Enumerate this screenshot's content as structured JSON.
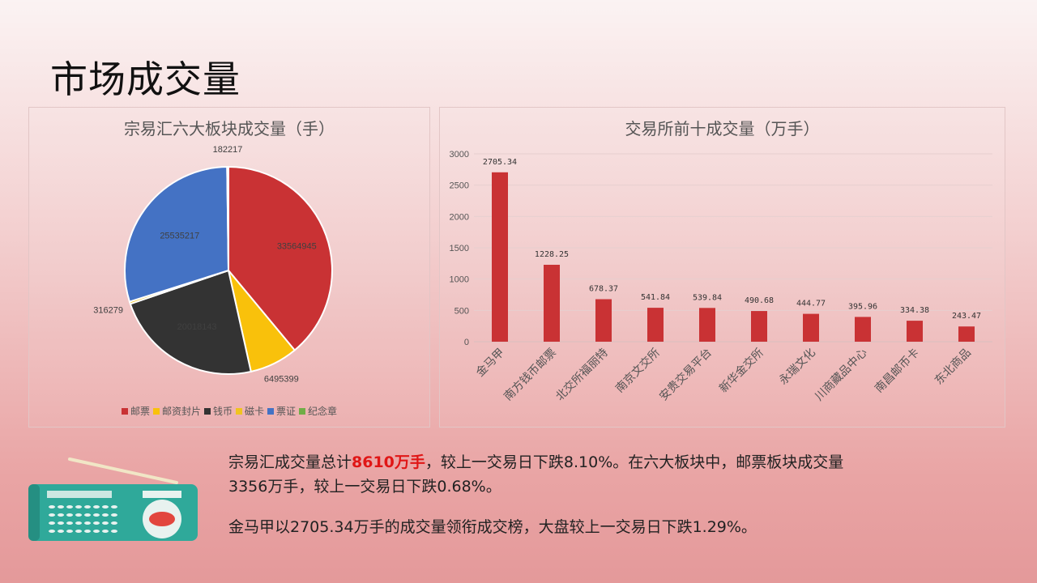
{
  "page": {
    "title": "市场成交量"
  },
  "pie_panel": {
    "title": "宗易汇六大板块成交量（手）",
    "legend": [
      {
        "label": "邮票",
        "color": "#c93234"
      },
      {
        "label": "邮资封片",
        "color": "#f9c10b"
      },
      {
        "label": "钱币",
        "color": "#333333"
      },
      {
        "label": "磁卡",
        "color": "#f0c420"
      },
      {
        "label": "票证",
        "color": "#4472c4"
      },
      {
        "label": "纪念章",
        "color": "#70ad47"
      }
    ]
  },
  "bar_panel": {
    "title": "交易所前十成交量（万手）"
  },
  "chart_data": [
    {
      "type": "pie",
      "title": "宗易汇六大板块成交量（手）",
      "categories": [
        "邮票",
        "邮资封片",
        "钱币",
        "磁卡",
        "票证",
        "纪念章"
      ],
      "values": [
        33564945,
        6495399,
        20018143,
        316279,
        25535217,
        182217
      ],
      "labels": [
        "33564945",
        "6495399",
        "20018143",
        "316279",
        "25535217",
        "182217"
      ],
      "colors": [
        "#c93234",
        "#f9c10b",
        "#333333",
        "#f0c420",
        "#4472c4",
        "#70ad47"
      ],
      "legend_position": "bottom"
    },
    {
      "type": "bar",
      "title": "交易所前十成交量（万手）",
      "categories": [
        "金马甲",
        "南方钱币邮票",
        "北交所福丽特",
        "南京文交所",
        "安贵交易平台",
        "新华金交所",
        "永瑞文化",
        "川商藏品中心",
        "南昌邮币卡",
        "东北商品"
      ],
      "values": [
        2705.34,
        1228.25,
        678.37,
        541.84,
        539.84,
        490.68,
        444.77,
        395.96,
        334.38,
        243.47
      ],
      "value_labels": [
        "2705.34",
        "1228.25",
        "678.37",
        "541.84",
        "539.84",
        "490.68",
        "444.77",
        "395.96",
        "334.38",
        "243.47"
      ],
      "ylim": [
        0,
        3000
      ],
      "yticks": [
        0,
        500,
        1000,
        1500,
        2000,
        2500,
        3000
      ],
      "grid": true,
      "bar_color": "#c93234"
    }
  ],
  "summary": {
    "p1_a": "宗易汇成交量总计",
    "p1_highlight": "8610万手",
    "p1_b": "，较上一交易日下跌8.10%。在六大板块中，邮票板块成交量",
    "p1_c": "3356万手，较上一交易日下跌0.68%。",
    "p2": "金马甲以2705.34万手的成交量领衔成交榜，大盘较上一交易日下跌1.29%。"
  }
}
